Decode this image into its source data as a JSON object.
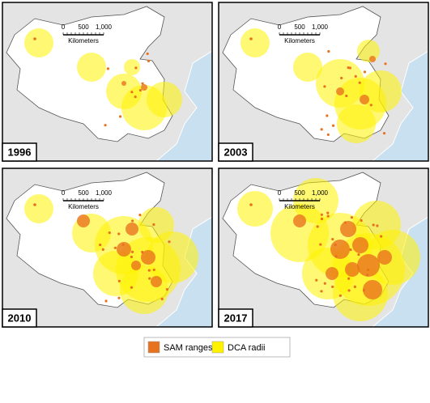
{
  "panels": [
    {
      "year": "1996"
    },
    {
      "year": "2003"
    },
    {
      "year": "2010"
    },
    {
      "year": "2017"
    }
  ],
  "scale": {
    "ticks": [
      "0",
      "500",
      "1,000"
    ],
    "unit": "Kilometers"
  },
  "legend": [
    {
      "label": "SAM ranges",
      "color": "#e8731e"
    },
    {
      "label": "DCA radii",
      "color": "#fff200"
    }
  ]
}
